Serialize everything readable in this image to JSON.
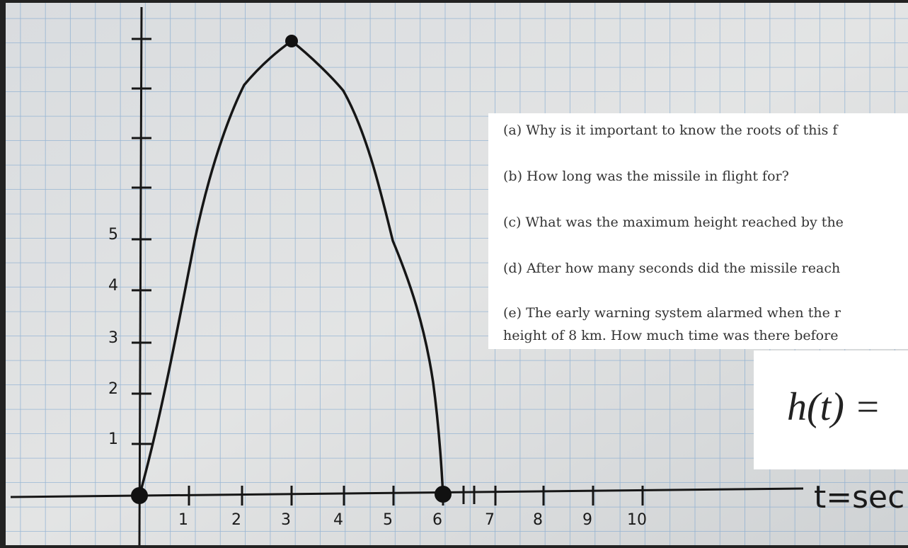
{
  "graph": {
    "x_labels": [
      "1",
      "2",
      "3",
      "4",
      "5",
      "6",
      "7",
      "8",
      "9",
      "10"
    ],
    "y_labels": [
      "1",
      "2",
      "3",
      "4",
      "5"
    ],
    "axis_label": "t=sec"
  },
  "questions": [
    "(a) Why is it important to know the roots of this f",
    "(b) How long was the missile in flight for?",
    "(c) What was the maximum height reached by the",
    "(d) After how many seconds did the missile reach",
    "(e) The early warning system alarmed when the r",
    "height of 8 km. How much time was there before"
  ],
  "formula": "h(t) ="
}
